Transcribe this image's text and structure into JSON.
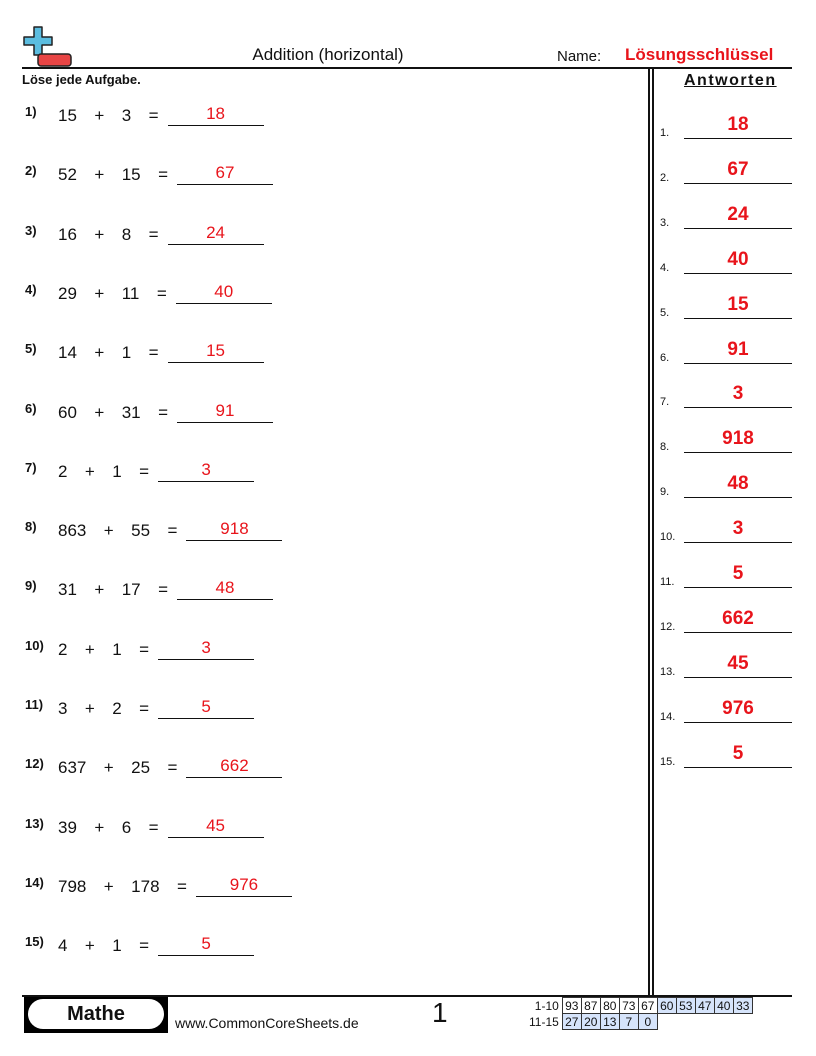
{
  "header": {
    "title": "Addition (horizontal)",
    "name_label": "Name:",
    "name_value": "Lösungsschlüssel",
    "instruction": "Löse jede Aufgabe.",
    "answers_heading": "Antworten",
    "logo_icon": "plus-minus-icon"
  },
  "problems": [
    {
      "num": "1)",
      "expr": "15  +  3  =",
      "answer": "18"
    },
    {
      "num": "2)",
      "expr": "52  +  15  =",
      "answer": "67"
    },
    {
      "num": "3)",
      "expr": "16  +  8  =",
      "answer": "24"
    },
    {
      "num": "4)",
      "expr": "29  +  11  =",
      "answer": "40"
    },
    {
      "num": "5)",
      "expr": "14  +  1  =",
      "answer": "15"
    },
    {
      "num": "6)",
      "expr": "60  +  31  =",
      "answer": "91"
    },
    {
      "num": "7)",
      "expr": "2  +  1  =",
      "answer": "3"
    },
    {
      "num": "8)",
      "expr": "863  +  55  =",
      "answer": "918"
    },
    {
      "num": "9)",
      "expr": "31  +  17  =",
      "answer": "48"
    },
    {
      "num": "10)",
      "expr": "2  +  1  =",
      "answer": "3"
    },
    {
      "num": "11)",
      "expr": "3  +  2  =",
      "answer": "5"
    },
    {
      "num": "12)",
      "expr": "637  +  25  =",
      "answer": "662"
    },
    {
      "num": "13)",
      "expr": "39  +  6  =",
      "answer": "45"
    },
    {
      "num": "14)",
      "expr": "798  +  178  =",
      "answer": "976"
    },
    {
      "num": "15)",
      "expr": "4  +  1  =",
      "answer": "5"
    }
  ],
  "answer_key": [
    {
      "num": "1.",
      "answer": "18"
    },
    {
      "num": "2.",
      "answer": "67"
    },
    {
      "num": "3.",
      "answer": "24"
    },
    {
      "num": "4.",
      "answer": "40"
    },
    {
      "num": "5.",
      "answer": "15"
    },
    {
      "num": "6.",
      "answer": "91"
    },
    {
      "num": "7.",
      "answer": "3"
    },
    {
      "num": "8.",
      "answer": "918"
    },
    {
      "num": "9.",
      "answer": "48"
    },
    {
      "num": "10.",
      "answer": "3"
    },
    {
      "num": "11.",
      "answer": "5"
    },
    {
      "num": "12.",
      "answer": "662"
    },
    {
      "num": "13.",
      "answer": "45"
    },
    {
      "num": "14.",
      "answer": "976"
    },
    {
      "num": "15.",
      "answer": "5"
    }
  ],
  "footer": {
    "brand": "Mathe",
    "site": "www.CommonCoreSheets.de",
    "page": "1",
    "score_rows": [
      {
        "label": "1-10",
        "values": [
          "93",
          "87",
          "80",
          "73",
          "67",
          "60",
          "53",
          "47",
          "40",
          "33"
        ]
      },
      {
        "label": "11-15",
        "values": [
          "27",
          "20",
          "13",
          "7",
          "0"
        ]
      }
    ],
    "highlight_color": "#d6e4fb"
  },
  "colors": {
    "answer": "#e8141b",
    "logo_plus": "#5bbde0",
    "logo_minus": "#e84545"
  }
}
